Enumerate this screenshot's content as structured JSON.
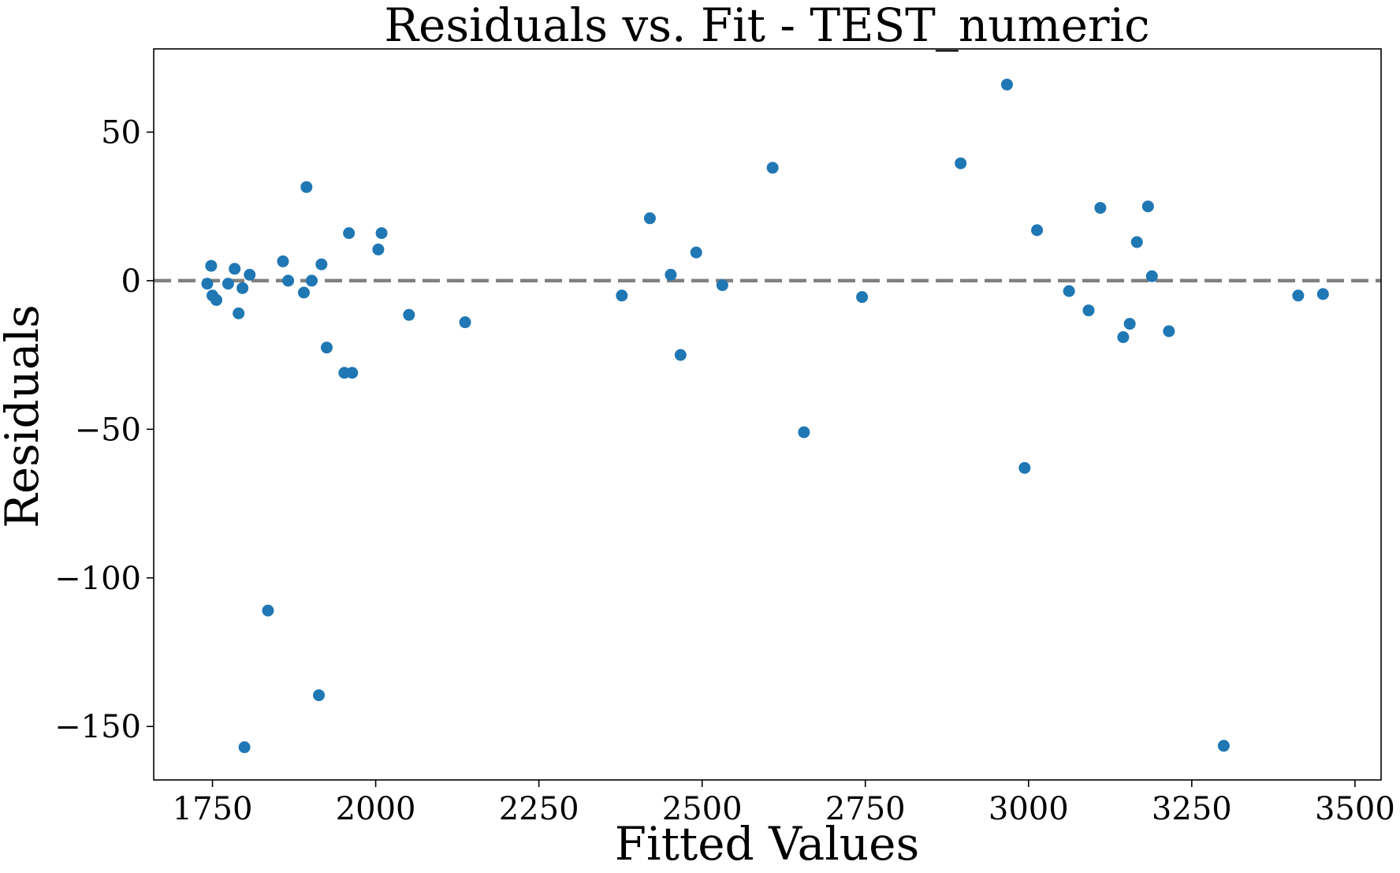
{
  "chart_data": {
    "type": "scatter",
    "title": "Residuals vs. Fit - TEST_numeric",
    "xlabel": "Fitted Values",
    "ylabel": "Residuals",
    "xlim": [
      1660,
      3540
    ],
    "ylim": [
      -168,
      78
    ],
    "xticks": [
      1750,
      2000,
      2250,
      2500,
      2750,
      3000,
      3250,
      3500
    ],
    "yticks": [
      50,
      0,
      -50,
      -100,
      -150
    ],
    "ytick_labels": [
      "50",
      "0",
      "−50",
      "−100",
      "−150"
    ],
    "grid": false,
    "reference_line": {
      "y": 0,
      "style": "dashed",
      "color": "#808080"
    },
    "marker_color": "#1f77b4",
    "points": [
      {
        "x": 1742,
        "y": -1
      },
      {
        "x": 1748,
        "y": 5
      },
      {
        "x": 1750,
        "y": -5
      },
      {
        "x": 1756,
        "y": -6.5
      },
      {
        "x": 1774,
        "y": -1
      },
      {
        "x": 1784,
        "y": 4
      },
      {
        "x": 1790,
        "y": -11
      },
      {
        "x": 1796,
        "y": -2.5
      },
      {
        "x": 1799,
        "y": -157
      },
      {
        "x": 1807,
        "y": 2
      },
      {
        "x": 1835,
        "y": -111
      },
      {
        "x": 1858,
        "y": 6.5
      },
      {
        "x": 1866,
        "y": 0
      },
      {
        "x": 1890,
        "y": -4
      },
      {
        "x": 1894,
        "y": 31.5
      },
      {
        "x": 1902,
        "y": 0
      },
      {
        "x": 1913,
        "y": -139.5
      },
      {
        "x": 1917,
        "y": 5.5
      },
      {
        "x": 1925,
        "y": -22.5
      },
      {
        "x": 1952,
        "y": -31
      },
      {
        "x": 1959,
        "y": 16
      },
      {
        "x": 1964,
        "y": -31
      },
      {
        "x": 2004,
        "y": 10.5
      },
      {
        "x": 2009,
        "y": 16
      },
      {
        "x": 2051,
        "y": -11.5
      },
      {
        "x": 2137,
        "y": -14
      },
      {
        "x": 2377,
        "y": -5
      },
      {
        "x": 2420,
        "y": 21
      },
      {
        "x": 2452,
        "y": 2
      },
      {
        "x": 2467,
        "y": -25
      },
      {
        "x": 2491,
        "y": 9.5
      },
      {
        "x": 2531,
        "y": -1.5
      },
      {
        "x": 2608,
        "y": 38
      },
      {
        "x": 2656,
        "y": -51
      },
      {
        "x": 2745,
        "y": -5.5
      },
      {
        "x": 2896,
        "y": 39.5
      },
      {
        "x": 2967,
        "y": 66
      },
      {
        "x": 2994,
        "y": -63
      },
      {
        "x": 3013,
        "y": 17
      },
      {
        "x": 3062,
        "y": -3.5
      },
      {
        "x": 3092,
        "y": -10
      },
      {
        "x": 3110,
        "y": 24.5
      },
      {
        "x": 3145,
        "y": -19
      },
      {
        "x": 3155,
        "y": -14.5
      },
      {
        "x": 3166,
        "y": 13
      },
      {
        "x": 3183,
        "y": 25
      },
      {
        "x": 3189,
        "y": 1.5
      },
      {
        "x": 3215,
        "y": -17
      },
      {
        "x": 3299,
        "y": -156.5
      },
      {
        "x": 3413,
        "y": -5
      },
      {
        "x": 3451,
        "y": -4.5
      }
    ]
  }
}
